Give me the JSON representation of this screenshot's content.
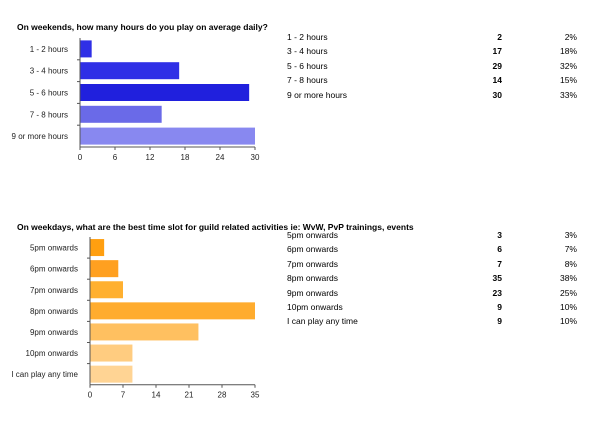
{
  "chart_data": [
    {
      "type": "bar",
      "orientation": "horizontal",
      "title": "On weekends, how many hours do you play on average daily?",
      "categories": [
        "1 - 2 hours",
        "3 - 4 hours",
        "5 - 6 hours",
        "7 - 8 hours",
        "9 or more hours"
      ],
      "values": [
        2,
        17,
        29,
        14,
        30
      ],
      "percentages": [
        "2%",
        "18%",
        "32%",
        "15%",
        "33%"
      ],
      "xlim": [
        0,
        30
      ],
      "xticks": [
        0,
        6,
        12,
        18,
        24,
        30
      ],
      "grid": false,
      "colors": [
        "#2f2fe6",
        "#2f2fe6",
        "#2020dd",
        "#6a6ae8",
        "#8888f0"
      ]
    },
    {
      "type": "bar",
      "orientation": "horizontal",
      "title": "On weekdays, what are the best time slot for guild related activities ie: WvW, PvP trainings, events",
      "categories": [
        "5pm onwards",
        "6pm onwards",
        "7pm onwards",
        "8pm onwards",
        "9pm onwards",
        "10pm onwards",
        "I can play any time"
      ],
      "values": [
        3,
        6,
        7,
        35,
        23,
        9,
        9
      ],
      "percentages": [
        "3%",
        "7%",
        "8%",
        "38%",
        "25%",
        "10%",
        "10%"
      ],
      "xlim": [
        0,
        35
      ],
      "xticks": [
        0,
        7,
        14,
        21,
        28,
        35
      ],
      "grid": false,
      "colors": [
        "#ff9f10",
        "#ffa020",
        "#ffb030",
        "#ffac2e",
        "#ffc060",
        "#ffcc80",
        "#ffd494"
      ]
    }
  ]
}
